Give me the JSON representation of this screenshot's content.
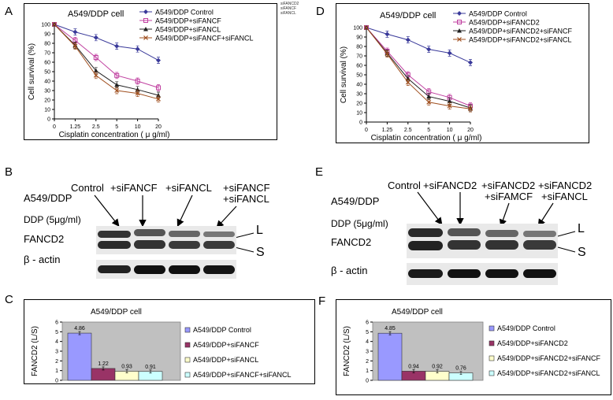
{
  "panels": {
    "A": {
      "letter": "A",
      "title": "A549/DDP cell",
      "side_note": [
        "siFANCD2",
        "siFANCF",
        "siFANCL"
      ],
      "chart_data": {
        "type": "line",
        "title": "A549/DDP cell",
        "xlabel": "Cisplatin concentration ( μ g/ml)",
        "ylabel": "Cell survival (%)",
        "categories": [
          "0",
          "1.25",
          "2.5",
          "5",
          "10",
          "20"
        ],
        "yticks": [
          "0",
          "10",
          "20",
          "30",
          "40",
          "50",
          "60",
          "70",
          "80",
          "90",
          "100"
        ],
        "ylim": [
          0,
          100
        ],
        "legend_position": "top-right",
        "series": [
          {
            "name": "A549/DDP Control",
            "color": "#3a3a9a",
            "marker": "diamond",
            "values": [
              100,
              92,
              86,
              77,
              74,
              62
            ]
          },
          {
            "name": "A549/DDP+siFANCF",
            "color": "#c040a0",
            "marker": "square",
            "values": [
              100,
              83,
              65,
              46,
              40,
              33
            ]
          },
          {
            "name": "A549/DDP+siFANCL",
            "color": "#202020",
            "marker": "triangle",
            "values": [
              100,
              78,
              51,
              36,
              31,
              25
            ]
          },
          {
            "name": "A549/DDP+siFANCF+siFANCL",
            "color": "#a05020",
            "marker": "x",
            "values": [
              100,
              77,
              46,
              30,
              27,
              21
            ]
          }
        ]
      }
    },
    "D": {
      "letter": "D",
      "title": "A549/DDP cell",
      "chart_data": {
        "type": "line",
        "title": "A549/DDP cell",
        "xlabel": "Cisplatin concentration ( μ g/ml)",
        "ylabel": "Cell survival (%)",
        "categories": [
          "0",
          "1.25",
          "2.5",
          "5",
          "10",
          "20"
        ],
        "yticks": [
          "0",
          "10",
          "20",
          "30",
          "40",
          "50",
          "60",
          "70",
          "80",
          "90",
          "100"
        ],
        "ylim": [
          0,
          100
        ],
        "legend_position": "top-right",
        "series": [
          {
            "name": "A549/DDP Control",
            "color": "#3a3a9a",
            "marker": "diamond",
            "values": [
              100,
              93,
              87,
              77,
              73,
              63
            ]
          },
          {
            "name": "A549/DDP+siFANCD2",
            "color": "#c040a0",
            "marker": "square",
            "values": [
              100,
              75,
              50,
              32,
              26,
              17
            ]
          },
          {
            "name": "A549/DDP+siFANCD2+siFANCF",
            "color": "#202020",
            "marker": "triangle",
            "values": [
              100,
              73,
              46,
              27,
              22,
              15
            ]
          },
          {
            "name": "A549/DDP+siFANCD2+siFANCL",
            "color": "#a05020",
            "marker": "x",
            "values": [
              100,
              72,
              42,
              21,
              17,
              14
            ]
          }
        ]
      }
    },
    "B": {
      "letter": "B",
      "cell_label": "A549/DDP",
      "ddp_label": "DDP (5μg/ml)",
      "protein": "FANCD2",
      "loading": "β - actin",
      "L": "L",
      "S": "S",
      "lanes": [
        "Control",
        "+siFANCF",
        "+siFANCL",
        "+siFANCF\n+siFANCL"
      ],
      "lane_line1": [
        "Control",
        "+siFANCF",
        "+siFANCL",
        "+siFANCF"
      ],
      "lane_line2": [
        "",
        "",
        "",
        "+siFANCL"
      ]
    },
    "E": {
      "letter": "E",
      "cell_label": "A549/DDP",
      "ddp_label": "DDP (5μg/ml)",
      "protein": "FANCD2",
      "loading": "β - actin",
      "L": "L",
      "S": "S",
      "lane_line1": [
        "Control",
        "+siFANCD2",
        "+siFANCD2",
        "+siFANCD2"
      ],
      "lane_line2": [
        "",
        "",
        "+siFAMCF",
        "+siFANCL"
      ]
    },
    "C": {
      "letter": "C",
      "chart_data": {
        "type": "bar",
        "title": "A549/DDP cell",
        "ylabel": "FANCD2 (L/S)",
        "yticks": [
          "0",
          "1",
          "2",
          "3",
          "4",
          "5",
          "6"
        ],
        "ylim": [
          0,
          6
        ],
        "legend_position": "right",
        "categories": [
          "A549/DDP Control",
          "A549/DDP+siFANCF",
          "A549/DDP+siFANCL",
          "A549/DDP+siFANCF+siFANCL"
        ],
        "values": [
          4.86,
          1.22,
          0.93,
          0.91
        ],
        "labels": [
          "4.86",
          "1.22",
          "0.93",
          "0.91"
        ],
        "colors": [
          "#9999ff",
          "#993366",
          "#ffffcc",
          "#ccffff"
        ]
      }
    },
    "F": {
      "letter": "F",
      "chart_data": {
        "type": "bar",
        "title": "A549/DDP cell",
        "ylabel": "FANCD2 (L/S)",
        "yticks": [
          "0",
          "1",
          "2",
          "3",
          "4",
          "5",
          "6"
        ],
        "ylim": [
          0,
          6
        ],
        "legend_position": "right",
        "categories": [
          "A549/DDP Control",
          "A549/DDP+siFANCD2",
          "A549/DDP+siFANCD2+siFANCF",
          "A549/DDP+siFANCD2+siFANCL"
        ],
        "values": [
          4.85,
          0.94,
          0.92,
          0.76
        ],
        "labels": [
          "4.85",
          "0.94",
          "0.92",
          "0.76"
        ],
        "colors": [
          "#9999ff",
          "#993366",
          "#ffffcc",
          "#ccffff"
        ]
      }
    }
  }
}
